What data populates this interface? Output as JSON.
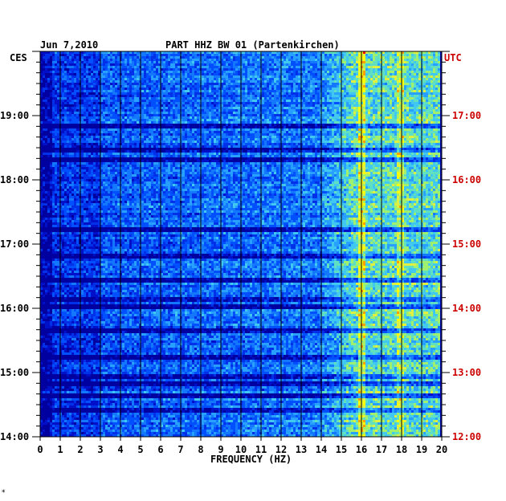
{
  "chart_data": {
    "type": "heatmap",
    "date": "Jun 7,2010",
    "title": "PART HHZ BW 01 (Partenkirchen)",
    "xlabel": "FREQUENCY (HZ)",
    "left_tz": "CES",
    "right_tz": "UTC",
    "x_ticks": [
      "0",
      "1",
      "2",
      "3",
      "4",
      "5",
      "6",
      "7",
      "8",
      "9",
      "10",
      "11",
      "12",
      "13",
      "14",
      "15",
      "16",
      "17",
      "18",
      "19",
      "20"
    ],
    "xlim": [
      0,
      20
    ],
    "left_time_labels": [
      "19:00",
      "18:00",
      "17:00",
      "16:00",
      "15:00",
      "14:00"
    ],
    "right_time_labels": [
      "17:00",
      "16:00",
      "15:00",
      "14:00",
      "13:00",
      "12:00"
    ],
    "time_range_cest": [
      "14:00",
      "19:50"
    ],
    "colors": {
      "low": "#0000a0",
      "mid": "#1e78ff",
      "high": "#ffff00",
      "peak": "#ff0000",
      "grid": "#000000",
      "right_label": "#cc0000"
    },
    "footer_mark": "*"
  }
}
